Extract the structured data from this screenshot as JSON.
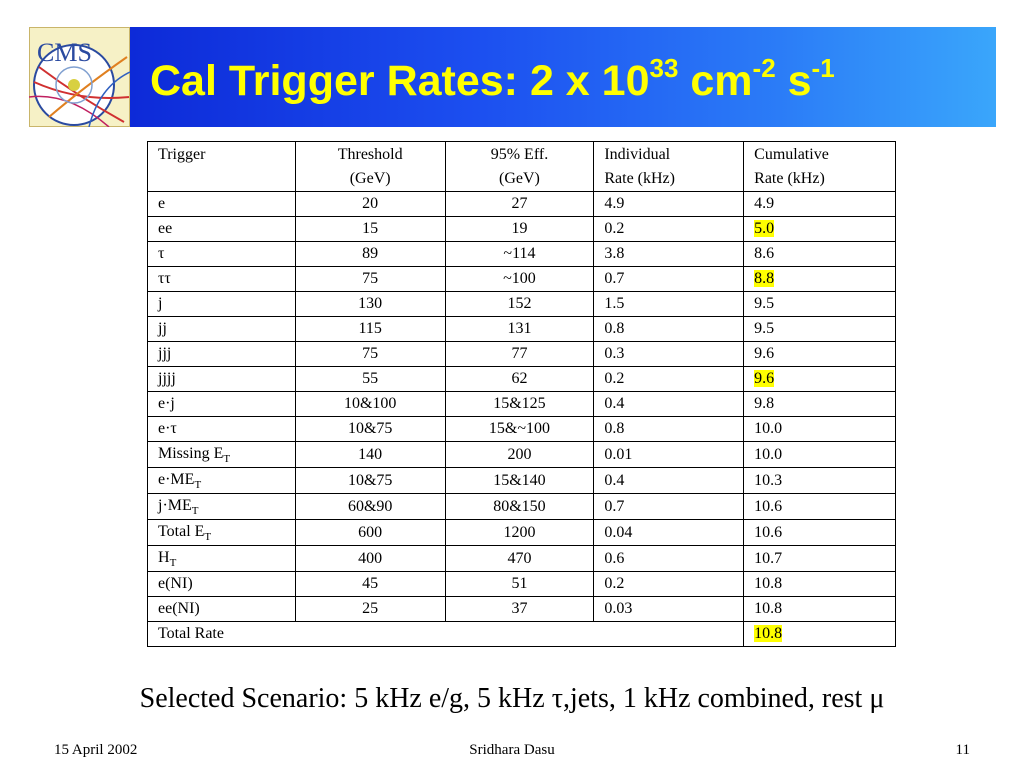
{
  "slide": {
    "title_main": "Cal Trigger Rates: 2 x 10",
    "title_exp1": "33",
    "title_unit1": " cm",
    "title_exp2": "-2",
    "title_unit2": " s",
    "title_exp3": "-1",
    "logo_text": "CMS"
  },
  "table": {
    "headers": {
      "c1": "Trigger",
      "c2a": "Threshold",
      "c2b": "(GeV)",
      "c3a": "95% Eff.",
      "c3b": "(GeV)",
      "c4a": "Individual",
      "c4b": "Rate (kHz)",
      "c5a": "Cumulative",
      "c5b": "Rate (kHz)"
    },
    "rows": [
      {
        "trigger": "e",
        "sub": "",
        "threshold": "20",
        "eff": "27",
        "individual": "4.9",
        "cumulative": "4.9",
        "highlight": false
      },
      {
        "trigger": "ee",
        "sub": "",
        "threshold": "15",
        "eff": "19",
        "individual": "0.2",
        "cumulative": "5.0",
        "highlight": true
      },
      {
        "trigger": "τ",
        "sub": "",
        "threshold": "89",
        "eff": "~114",
        "individual": "3.8",
        "cumulative": "8.6",
        "highlight": false
      },
      {
        "trigger": "ττ",
        "sub": "",
        "threshold": "75",
        "eff": "~100",
        "individual": "0.7",
        "cumulative": "8.8",
        "highlight": true
      },
      {
        "trigger": "j",
        "sub": "",
        "threshold": "130",
        "eff": "152",
        "individual": "1.5",
        "cumulative": "9.5",
        "highlight": false
      },
      {
        "trigger": "jj",
        "sub": "",
        "threshold": "115",
        "eff": "131",
        "individual": "0.8",
        "cumulative": "9.5",
        "highlight": false
      },
      {
        "trigger": "jjj",
        "sub": "",
        "threshold": "75",
        "eff": "77",
        "individual": "0.3",
        "cumulative": "9.6",
        "highlight": false
      },
      {
        "trigger": "jjjj",
        "sub": "",
        "threshold": "55",
        "eff": "62",
        "individual": "0.2",
        "cumulative": "9.6",
        "highlight": true
      },
      {
        "trigger": "e·j",
        "sub": "",
        "threshold": "10&100",
        "eff": "15&125",
        "individual": "0.4",
        "cumulative": "9.8",
        "highlight": false
      },
      {
        "trigger": "e·τ",
        "sub": "",
        "threshold": "10&75",
        "eff": "15&~100",
        "individual": "0.8",
        "cumulative": "10.0",
        "highlight": false
      },
      {
        "trigger": "Missing E",
        "sub": "T",
        "threshold": "140",
        "eff": "200",
        "individual": "0.01",
        "cumulative": "10.0",
        "highlight": false
      },
      {
        "trigger": "e·ME",
        "sub": "T",
        "threshold": "10&75",
        "eff": "15&140",
        "individual": "0.4",
        "cumulative": "10.3",
        "highlight": false
      },
      {
        "trigger": "j·ME",
        "sub": "T",
        "threshold": "60&90",
        "eff": "80&150",
        "individual": "0.7",
        "cumulative": "10.6",
        "highlight": false
      },
      {
        "trigger": "Total E",
        "sub": "T",
        "threshold": "600",
        "eff": "1200",
        "individual": "0.04",
        "cumulative": "10.6",
        "highlight": false
      },
      {
        "trigger": "H",
        "sub": "T",
        "threshold": "400",
        "eff": "470",
        "individual": "0.6",
        "cumulative": "10.7",
        "highlight": false
      },
      {
        "trigger": "e(NI)",
        "sub": "",
        "threshold": "45",
        "eff": "51",
        "individual": "0.2",
        "cumulative": "10.8",
        "highlight": false
      },
      {
        "trigger": "ee(NI)",
        "sub": "",
        "threshold": "25",
        "eff": "37",
        "individual": "0.03",
        "cumulative": "10.8",
        "highlight": false
      }
    ],
    "total": {
      "label": "Total Rate",
      "value": "10.8"
    }
  },
  "scenario": "Selected Scenario: 5 kHz e/g, 5 kHz τ,jets, 1 kHz combined, rest μ",
  "footer": {
    "date": "15 April 2002",
    "author": "Sridhara Dasu",
    "page": "11"
  },
  "colors": {
    "title": "#ffff00",
    "highlight": "#ffff00",
    "header_band_start": "#0d2ad8",
    "header_band_end": "#3aa6fb"
  }
}
